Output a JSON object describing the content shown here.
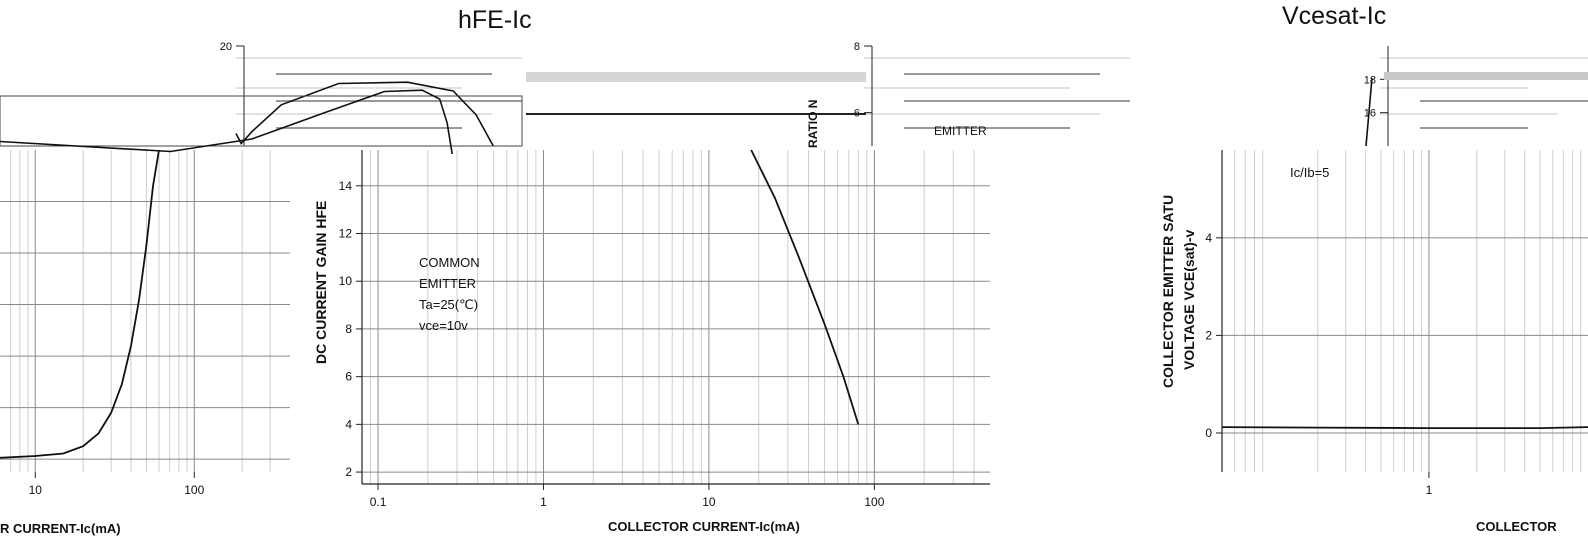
{
  "chart_data": [
    {
      "id": "left",
      "type": "line",
      "xlabel": "R CURRENT-Ic(mA)",
      "ylabel": "",
      "x_scale": "log",
      "xlim": [
        6,
        400
      ],
      "ylim": [
        3.5,
        16
      ],
      "x_ticks": [
        10,
        100
      ],
      "y_gridlines": [
        4,
        6,
        8,
        10,
        12,
        14
      ],
      "grid": true,
      "series": [
        {
          "x": [
            6,
            10,
            15,
            20,
            25,
            30,
            35,
            40,
            45,
            50,
            55,
            60
          ],
          "y": [
            4.05,
            4.12,
            4.22,
            4.5,
            5.0,
            5.8,
            6.9,
            8.4,
            10.2,
            12.3,
            14.6,
            16.0
          ]
        }
      ]
    },
    {
      "id": "hfe",
      "type": "line",
      "title": "hFE-Ic",
      "xlabel": "COLLECTOR CURRENT-Ic(mA)",
      "ylabel": "DC CURRENT GAIN  HFE",
      "x_scale": "log",
      "xlim": [
        0.08,
        500
      ],
      "ylim": [
        1.5,
        15.5
      ],
      "x_ticks": [
        0.1,
        1,
        10,
        100
      ],
      "y_ticks": [
        2,
        4,
        6,
        8,
        10,
        12,
        14
      ],
      "grid": true,
      "annotation": [
        "COMMON",
        "EMITTER",
        "Ta=25(℃)",
        "vce=10v"
      ],
      "series": [
        {
          "x": [
            18,
            25,
            35,
            50,
            65,
            80
          ],
          "y": [
            15.5,
            13.5,
            11.0,
            8.2,
            6.0,
            4.0
          ]
        }
      ]
    },
    {
      "id": "vcesat",
      "type": "line",
      "title": "Vcesat-Ic",
      "xlabel": "COLLECTOR",
      "ylabel": "COLLECTOR EMITTER SATU",
      "ylabel2": "VOLTAGE VCE(sat)-v",
      "x_scale": "log",
      "xlim": [
        0.05,
        10
      ],
      "ylim": [
        -0.8,
        5.8
      ],
      "x_ticks": [
        1
      ],
      "y_ticks": [
        0,
        2,
        4
      ],
      "grid": true,
      "annotation": [
        "Ic/Ib=5"
      ],
      "series": [
        {
          "x": [
            0.05,
            0.2,
            1,
            5,
            10
          ],
          "y": [
            0.12,
            0.11,
            0.1,
            0.1,
            0.12
          ]
        }
      ]
    },
    {
      "id": "strip-left",
      "type": "line",
      "xlim": [
        1,
        500
      ],
      "ylim": [
        12,
        20
      ],
      "y_ticks": [
        20
      ],
      "series": [
        {
          "x": [
            1,
            10,
            30,
            80,
            180,
            300,
            380,
            420,
            450
          ],
          "y": [
            13.0,
            12.2,
            13.2,
            15.3,
            17.0,
            17.1,
            16.4,
            14.5,
            12.0
          ]
        }
      ]
    },
    {
      "id": "strip-middle",
      "type": "line",
      "xlim": [
        1,
        10
      ],
      "ylim": [
        5,
        8
      ],
      "y_ticks": [
        6,
        8
      ],
      "y_tick_label": "RATIO N",
      "annotation": [
        "EMITTER",
        "Ta=25(℃)"
      ],
      "series": []
    },
    {
      "id": "strip-right",
      "type": "line",
      "xlim": [
        0,
        1
      ],
      "ylim": [
        14,
        20
      ],
      "y_ticks": [
        16,
        18
      ],
      "series": []
    }
  ]
}
